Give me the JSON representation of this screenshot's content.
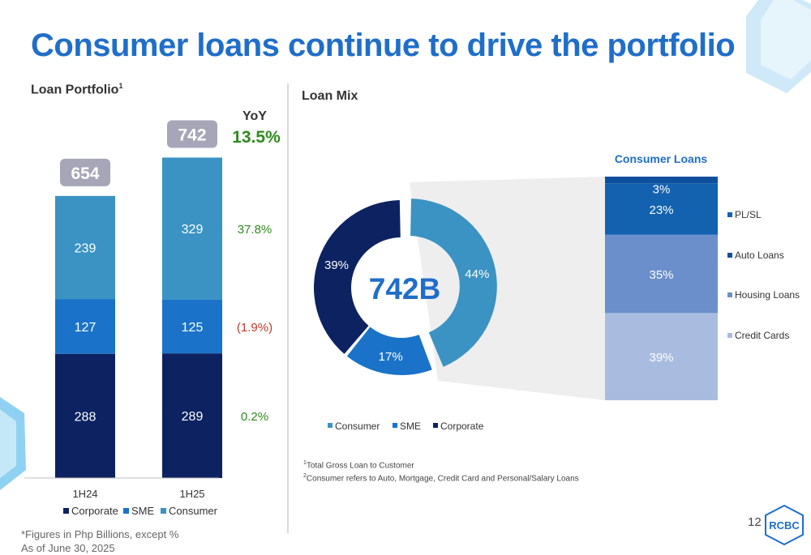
{
  "title": "Consumer loans continue to drive the portfolio",
  "left_panel": {
    "title": "Loan Portfolio",
    "title_sup": "1",
    "yoy_header": "YoY"
  },
  "right_panel": {
    "title": "Loan Mix"
  },
  "footnotes": {
    "figures": "*Figures in Php Billions, except %",
    "asof": "As of June 30, 2025",
    "note1_sup": "1",
    "note1": "Total Gross Loan to Customer",
    "note2_sup": "2",
    "note2": "Consumer refers to Auto, Mortgage, Credit Card and Personal/Salary Loans"
  },
  "page_number": "12",
  "logo_text": "RCBC",
  "colors": {
    "title_blue": "#1f6ec9",
    "corporate": "#0d2261",
    "sme": "#1a73c8",
    "consumer": "#3a93c3",
    "pl_sl": "#1262b0",
    "auto": "#0f4f9e",
    "housing": "#6a8fcb",
    "credit_cards": "#a9bce0",
    "positive": "#2e8b1e",
    "negative": "#c0392b",
    "total_badge": "#a6a6b8"
  },
  "chart_data": [
    {
      "type": "bar",
      "stacked": true,
      "title": "Loan Portfolio",
      "categories": [
        "1H24",
        "1H25"
      ],
      "series": [
        {
          "name": "Corporate",
          "values": [
            288,
            289
          ]
        },
        {
          "name": "SME",
          "values": [
            127,
            125
          ]
        },
        {
          "name": "Consumer",
          "values": [
            239,
            329
          ]
        }
      ],
      "totals": [
        "654",
        "742"
      ],
      "labels": [
        [
          "288",
          "289"
        ],
        [
          "127",
          "125"
        ],
        [
          "239",
          "329"
        ]
      ],
      "yoy": {
        "total": "13.5%",
        "Consumer": "37.8%",
        "SME": "(1.9%)",
        "Corporate": "0.2%"
      },
      "ylim": [
        0,
        742
      ],
      "legend": "bottom"
    },
    {
      "type": "pie",
      "donut": true,
      "title": "Loan Mix",
      "center_label": "742B",
      "categories": [
        "Consumer",
        "SME",
        "Corporate"
      ],
      "values": [
        44,
        17,
        39
      ],
      "labels": [
        "44%",
        "17%",
        "39%"
      ],
      "legend": "bottom"
    },
    {
      "type": "bar",
      "stacked": true,
      "title": "Consumer Loans",
      "categories": [
        "Consumer Loans"
      ],
      "series": [
        {
          "name": "Credit Cards",
          "values": [
            39
          ]
        },
        {
          "name": "Housing Loans",
          "values": [
            35
          ]
        },
        {
          "name": "Auto Loans",
          "values": [
            23
          ]
        },
        {
          "name": "PL/SL",
          "values": [
            3
          ]
        }
      ],
      "labels": [
        "39%",
        "35%",
        "23%",
        "3%"
      ],
      "legend_order": [
        "PL/SL",
        "Auto Loans",
        "Housing Loans",
        "Credit Cards"
      ],
      "legend": "right",
      "ylim": [
        0,
        100
      ]
    }
  ]
}
